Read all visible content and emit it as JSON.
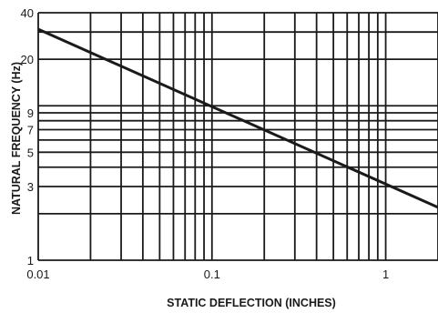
{
  "chart_data": {
    "type": "line",
    "title": "",
    "xlabel": "STATIC DEFLECTION (INCHES)",
    "ylabel": "NATURAL FREQUENCY (Hz)",
    "xscale": "log",
    "yscale": "log",
    "xlim": [
      0.01,
      2
    ],
    "ylim": [
      1,
      40
    ],
    "grid": true,
    "x_ticks": [
      {
        "value": 0.01,
        "label": "0.01"
      },
      {
        "value": 0.1,
        "label": "0.1"
      },
      {
        "value": 1,
        "label": "1"
      }
    ],
    "y_ticks": [
      {
        "value": 1,
        "label": "1"
      },
      {
        "value": 3,
        "label": "3"
      },
      {
        "value": 5,
        "label": "5"
      },
      {
        "value": 7,
        "label": "7"
      },
      {
        "value": 9,
        "label": "9"
      },
      {
        "value": 20,
        "label": "20"
      },
      {
        "value": 40,
        "label": "40"
      }
    ],
    "x_grid": [
      0.01,
      0.02,
      0.03,
      0.04,
      0.05,
      0.06,
      0.07,
      0.08,
      0.09,
      0.1,
      0.2,
      0.3,
      0.4,
      0.5,
      0.6,
      0.7,
      0.8,
      0.9,
      1,
      2
    ],
    "y_grid": [
      1,
      2,
      3,
      4,
      5,
      6,
      7,
      8,
      9,
      10,
      20,
      30,
      40
    ],
    "series": [
      {
        "x": [
          0.01,
          2
        ],
        "y": [
          31.3,
          2.2
        ]
      }
    ]
  }
}
